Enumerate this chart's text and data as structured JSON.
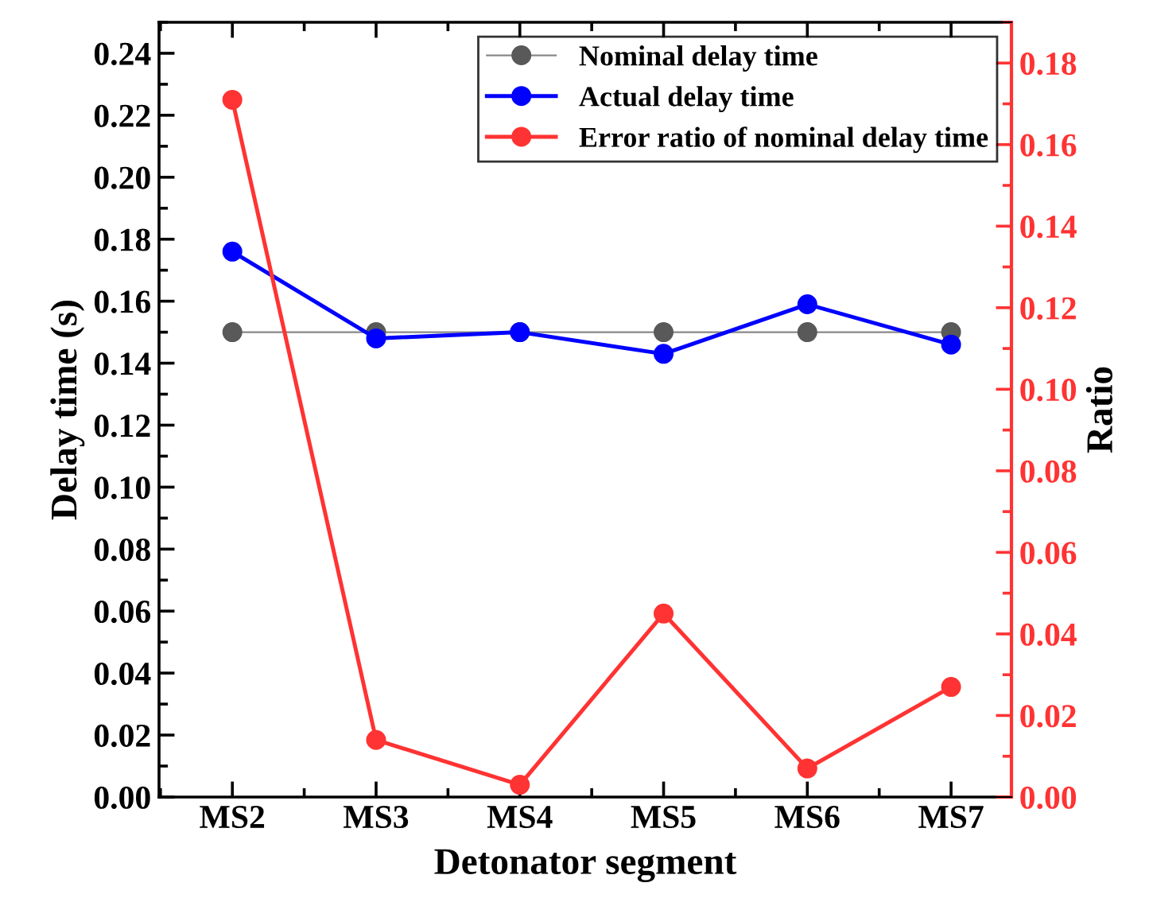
{
  "chart_data": {
    "type": "line",
    "xlabel": "Detonator segment",
    "ylabel": "Delay time (s)",
    "y2label": "Ratio",
    "categories": [
      "MS2",
      "MS3",
      "MS4",
      "MS5",
      "MS6",
      "MS7"
    ],
    "series": [
      {
        "name": "Nominal delay time",
        "color": "#595959",
        "values": [
          0.15,
          0.15,
          0.15,
          0.15,
          0.15,
          0.15
        ]
      },
      {
        "name": "Actual delay time",
        "color": "#0000ff",
        "values": [
          0.176,
          0.148,
          0.15,
          0.143,
          0.159,
          0.146
        ]
      },
      {
        "name": "Error ratio of nominal delay time",
        "color": "#ff3333",
        "axis": "y2",
        "values": [
          0.171,
          0.014,
          0.003,
          0.045,
          0.007,
          0.027
        ]
      }
    ],
    "ylim": [
      0,
      0.25
    ],
    "yticks": [
      {
        "value": 0,
        "label": "0.00"
      },
      {
        "value": 0.02,
        "label": "0.02"
      },
      {
        "value": 0.04,
        "label": "0.04"
      },
      {
        "value": 0.06,
        "label": "0.06"
      },
      {
        "value": 0.08,
        "label": "0.08"
      },
      {
        "value": 0.1,
        "label": "0.10"
      },
      {
        "value": 0.12,
        "label": "0.12"
      },
      {
        "value": 0.14,
        "label": "0.14"
      },
      {
        "value": 0.16,
        "label": "0.16"
      },
      {
        "value": 0.18,
        "label": "0.18"
      },
      {
        "value": 0.2,
        "label": "0.20"
      },
      {
        "value": 0.22,
        "label": "0.22"
      },
      {
        "value": 0.24,
        "label": "0.24"
      }
    ],
    "y2lim": [
      0,
      0.19
    ],
    "y2ticks": [
      {
        "value": 0,
        "label": "0.00"
      },
      {
        "value": 0.02,
        "label": "0.02"
      },
      {
        "value": 0.04,
        "label": "0.04"
      },
      {
        "value": 0.06,
        "label": "0.06"
      },
      {
        "value": 0.08,
        "label": "0.08"
      },
      {
        "value": 0.1,
        "label": "0.10"
      },
      {
        "value": 0.12,
        "label": "0.12"
      },
      {
        "value": 0.14,
        "label": "0.14"
      },
      {
        "value": 0.16,
        "label": "0.16"
      },
      {
        "value": 0.18,
        "label": "0.18"
      }
    ],
    "legend": "top right",
    "marker": "circle",
    "line_style": "solid",
    "grid": false
  }
}
